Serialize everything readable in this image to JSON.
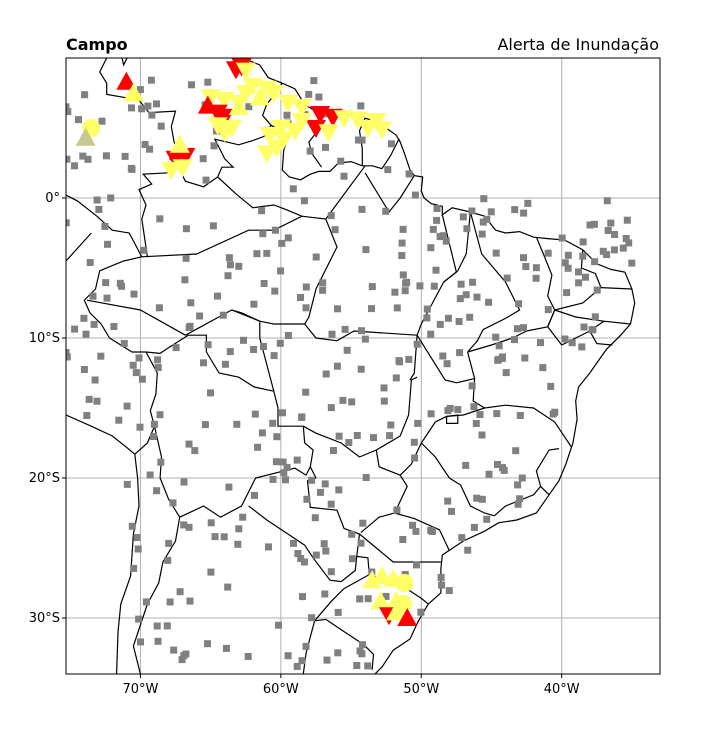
{
  "header": {
    "left_title": "Campo",
    "right_title": "Alerta de Inundação"
  },
  "map": {
    "lon_range": [
      -75.3,
      -33.0
    ],
    "lat_range": [
      -34.0,
      10.0
    ],
    "grid": true,
    "x_ticks": [
      {
        "lon": -70,
        "label": "70°W"
      },
      {
        "lon": -60,
        "label": "60°W"
      },
      {
        "lon": -50,
        "label": "50°W"
      },
      {
        "lon": -40,
        "label": "40°W"
      }
    ],
    "y_ticks": [
      {
        "lat": 0,
        "label": "0°"
      },
      {
        "lat": -10,
        "label": "10°S"
      },
      {
        "lat": -20,
        "label": "20°S"
      },
      {
        "lat": -30,
        "label": "30°S"
      }
    ]
  },
  "colors": {
    "no_alert": "#808080",
    "yellow_alert": "#ffff66",
    "red_alert": "#ff0000",
    "khaki": "#c8c890",
    "border": "#000000",
    "grid": "#b0b0b0"
  },
  "markers": {
    "alerts": [
      {
        "lon": -62.8,
        "lat": 9.4,
        "shape": "down",
        "level": "red"
      },
      {
        "lon": -63.2,
        "lat": 9.2,
        "shape": "down",
        "level": "red"
      },
      {
        "lon": -62.5,
        "lat": 9.1,
        "shape": "down",
        "level": "yellow"
      },
      {
        "lon": -71.0,
        "lat": 8.3,
        "shape": "up",
        "level": "red"
      },
      {
        "lon": -70.5,
        "lat": 7.5,
        "shape": "up",
        "level": "yellow"
      },
      {
        "lon": -65.0,
        "lat": 7.2,
        "shape": "down",
        "level": "yellow"
      },
      {
        "lon": -64.0,
        "lat": 7.0,
        "shape": "down",
        "level": "yellow"
      },
      {
        "lon": -62.0,
        "lat": 8.0,
        "shape": "down",
        "level": "yellow"
      },
      {
        "lon": -61.0,
        "lat": 7.8,
        "shape": "down",
        "level": "yellow"
      },
      {
        "lon": -60.5,
        "lat": 7.5,
        "shape": "down",
        "level": "yellow"
      },
      {
        "lon": -62.5,
        "lat": 7.5,
        "shape": "down",
        "level": "yellow"
      },
      {
        "lon": -61.5,
        "lat": 7.2,
        "shape": "up",
        "level": "yellow"
      },
      {
        "lon": -63.0,
        "lat": 6.8,
        "shape": "down",
        "level": "yellow"
      },
      {
        "lon": -65.2,
        "lat": 6.6,
        "shape": "up",
        "level": "red"
      },
      {
        "lon": -64.5,
        "lat": 6.1,
        "shape": "down",
        "level": "red"
      },
      {
        "lon": -64.0,
        "lat": 5.8,
        "shape": "down",
        "level": "red"
      },
      {
        "lon": -64.5,
        "lat": 5.2,
        "shape": "down",
        "level": "yellow"
      },
      {
        "lon": -63.5,
        "lat": 5.0,
        "shape": "down",
        "level": "yellow"
      },
      {
        "lon": -64.0,
        "lat": 4.7,
        "shape": "down",
        "level": "yellow"
      },
      {
        "lon": -63.0,
        "lat": 6.5,
        "shape": "up",
        "level": "yellow"
      },
      {
        "lon": -59.5,
        "lat": 6.8,
        "shape": "down",
        "level": "yellow"
      },
      {
        "lon": -58.5,
        "lat": 6.5,
        "shape": "down",
        "level": "yellow"
      },
      {
        "lon": -57.2,
        "lat": 6.0,
        "shape": "down",
        "level": "red"
      },
      {
        "lon": -56.3,
        "lat": 5.8,
        "shape": "down",
        "level": "red"
      },
      {
        "lon": -55.5,
        "lat": 5.7,
        "shape": "down",
        "level": "yellow"
      },
      {
        "lon": -54.5,
        "lat": 5.6,
        "shape": "down",
        "level": "yellow"
      },
      {
        "lon": -53.2,
        "lat": 5.5,
        "shape": "down",
        "level": "yellow"
      },
      {
        "lon": -52.8,
        "lat": 4.9,
        "shape": "down",
        "level": "yellow"
      },
      {
        "lon": -53.8,
        "lat": 5.0,
        "shape": "down",
        "level": "yellow"
      },
      {
        "lon": -57.5,
        "lat": 5.0,
        "shape": "down",
        "level": "red"
      },
      {
        "lon": -56.6,
        "lat": 4.7,
        "shape": "down",
        "level": "yellow"
      },
      {
        "lon": -58.5,
        "lat": 5.5,
        "shape": "down",
        "level": "yellow"
      },
      {
        "lon": -59.0,
        "lat": 4.8,
        "shape": "down",
        "level": "yellow"
      },
      {
        "lon": -60.0,
        "lat": 5.0,
        "shape": "down",
        "level": "yellow"
      },
      {
        "lon": -59.8,
        "lat": 4.2,
        "shape": "down",
        "level": "yellow"
      },
      {
        "lon": -60.8,
        "lat": 4.5,
        "shape": "down",
        "level": "yellow"
      },
      {
        "lon": -61.0,
        "lat": 3.2,
        "shape": "down",
        "level": "yellow"
      },
      {
        "lon": -60.3,
        "lat": 3.6,
        "shape": "down",
        "level": "yellow"
      },
      {
        "lon": -66.8,
        "lat": 3.0,
        "shape": "down",
        "level": "red"
      },
      {
        "lon": -67.5,
        "lat": 2.8,
        "shape": "down",
        "level": "red"
      },
      {
        "lon": -67.8,
        "lat": 2.0,
        "shape": "down",
        "level": "yellow"
      },
      {
        "lon": -67.0,
        "lat": 2.2,
        "shape": "down",
        "level": "yellow"
      },
      {
        "lon": -67.2,
        "lat": 3.8,
        "shape": "up",
        "level": "yellow"
      },
      {
        "lon": -73.5,
        "lat": 5.0,
        "shape": "circle",
        "level": "yellow"
      },
      {
        "lon": -73.9,
        "lat": 4.3,
        "shape": "up",
        "level": "khaki"
      },
      {
        "lon": -53.5,
        "lat": -27.3,
        "shape": "up",
        "level": "yellow"
      },
      {
        "lon": -52.8,
        "lat": -27.0,
        "shape": "up",
        "level": "yellow"
      },
      {
        "lon": -52.0,
        "lat": -27.2,
        "shape": "up",
        "level": "yellow"
      },
      {
        "lon": -51.2,
        "lat": -27.5,
        "shape": "circle",
        "level": "yellow"
      },
      {
        "lon": -52.9,
        "lat": -28.8,
        "shape": "up",
        "level": "yellow"
      },
      {
        "lon": -51.8,
        "lat": -28.8,
        "shape": "up",
        "level": "yellow"
      },
      {
        "lon": -51.3,
        "lat": -29.0,
        "shape": "circle",
        "level": "yellow"
      },
      {
        "lon": -52.3,
        "lat": -29.8,
        "shape": "down",
        "level": "red"
      },
      {
        "lon": -51.8,
        "lat": -29.6,
        "shape": "up",
        "level": "yellow"
      },
      {
        "lon": -51.0,
        "lat": -30.0,
        "shape": "up",
        "level": "red"
      }
    ],
    "no_alert_station_count": 420
  }
}
